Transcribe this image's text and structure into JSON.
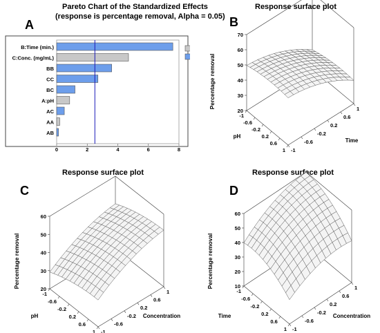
{
  "panels": {
    "a": {
      "letter": "A",
      "title": "Pareto Chart of the Standardized Effects",
      "subtitle": "(response is percentage removal, Alpha = 0.05)"
    },
    "b": {
      "letter": "B",
      "title": "Response surface plot"
    },
    "c": {
      "letter": "C",
      "title": "Response surface plot"
    },
    "d": {
      "letter": "D",
      "title": "Response surface plot"
    }
  },
  "chart_data": [
    {
      "id": "a",
      "type": "bar",
      "orientation": "horizontal",
      "title": "Pareto Chart of the Standardized Effects",
      "subtitle": "(response is percentage removal, Alpha = 0.05)",
      "categories": [
        "B:Time (min.)",
        "C:Conc. (mg/mL)",
        "BB",
        "CC",
        "BC",
        "A:pH",
        "AC",
        "AA",
        "AB"
      ],
      "values": [
        7.6,
        4.7,
        3.6,
        2.7,
        1.2,
        0.85,
        0.5,
        0.2,
        0.12
      ],
      "signs": [
        "-",
        "+",
        "-",
        "-",
        "-",
        "+",
        "-",
        "+",
        "-"
      ],
      "xlim": [
        0,
        8
      ],
      "xticks": [
        "0",
        "2",
        "4",
        "6",
        "8"
      ],
      "reference_line": 2.5,
      "legend": [
        {
          "label": "+",
          "color": "#c8c8c8"
        },
        {
          "label": "-",
          "color": "#6d9eeb"
        }
      ],
      "legend_position": "top-right",
      "colors": {
        "plus": "#c8c8c8",
        "minus": "#6d9eeb",
        "line": "#1a1ab8"
      }
    },
    {
      "id": "b",
      "type": "surface",
      "title": "Response surface plot",
      "zlabel": "Percentage removal",
      "xlabel": "pH",
      "ylabel": "Time",
      "zticks": [
        "20",
        "30",
        "40",
        "50",
        "60",
        "70"
      ],
      "xticks": [
        "-1",
        "-0.6",
        "-0.2",
        "0.2",
        "0.6",
        "1"
      ],
      "yticks": [
        "-1",
        "-0.6",
        "-0.2",
        "0.2",
        "0.6",
        "1"
      ],
      "zlim": [
        20,
        70
      ],
      "surface": {
        "c": 47.3,
        "bx": 1.0,
        "by": -8.2,
        "bxx": -1.5,
        "byy": -3.6,
        "bxy": 0.3
      },
      "x_axis_printed": "pH",
      "y_axis_printed": "Time"
    },
    {
      "id": "c",
      "type": "surface",
      "title": "Response surface plot",
      "zlabel": "Percentage removal",
      "xlabel": "pH",
      "ylabel": "Concentration",
      "zticks": [
        "20",
        "30",
        "40",
        "50",
        "60"
      ],
      "xticks": [
        "-1",
        "-0.6",
        "-0.2",
        "0.2",
        "0.6",
        "1"
      ],
      "yticks": [
        "-1",
        "-0.6",
        "-0.2",
        "0.2",
        "0.6",
        "1"
      ],
      "zlim": [
        20,
        60
      ],
      "surface": {
        "c": 44.5,
        "bx": 3.0,
        "by": 8.0,
        "bxx": -1.5,
        "byy": -3.0,
        "bxy": 0.2
      }
    },
    {
      "id": "d",
      "type": "surface",
      "title": "Response surface plot",
      "zlabel": "Percentage removal",
      "xlabel": "Time",
      "ylabel": "Concentration",
      "zticks": [
        "10",
        "20",
        "30",
        "40",
        "50",
        "60"
      ],
      "xticks": [
        "-1",
        "-0.6",
        "-0.2",
        "0.2",
        "0.6",
        "1"
      ],
      "yticks": [
        "-1",
        "-0.6",
        "-0.2",
        "0.2",
        "0.6",
        "1"
      ],
      "zlim": [
        10,
        60
      ],
      "surface": {
        "c": 51.3,
        "bx": -8.5,
        "by": 8.0,
        "bxx": -5.0,
        "byy": -5.0,
        "bxy": -2.0
      }
    }
  ]
}
